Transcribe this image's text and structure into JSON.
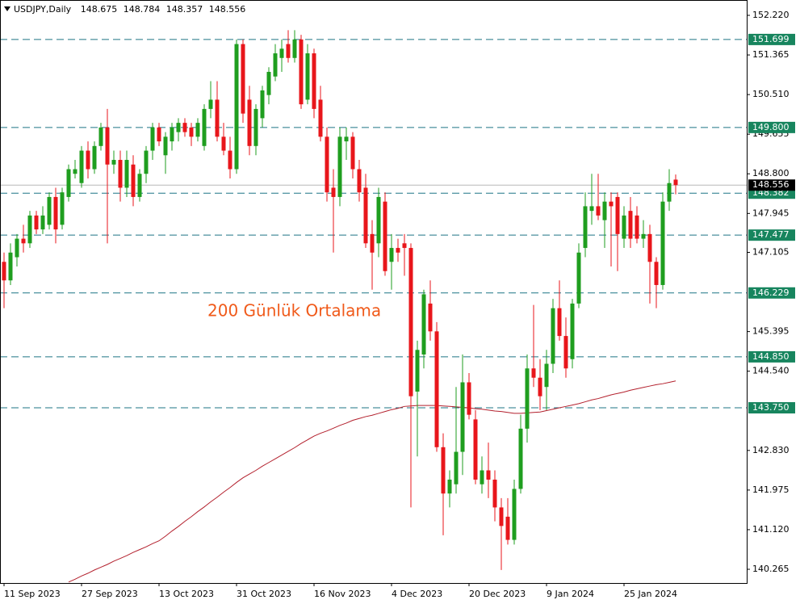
{
  "chart_data": {
    "type": "candlestick",
    "title": "USDJPY,Daily",
    "categories": [
      "11 Sep 2023",
      null,
      null,
      null,
      null,
      null,
      null,
      null,
      null,
      null,
      null,
      null,
      "27 Sep 2023",
      null,
      null,
      null,
      null,
      null,
      null,
      null,
      null,
      null,
      null,
      null,
      "13 Oct 2023",
      null,
      null,
      null,
      null,
      null,
      null,
      null,
      null,
      null,
      null,
      null,
      "31 Oct 2023",
      null,
      null,
      null,
      null,
      null,
      null,
      null,
      null,
      null,
      null,
      null,
      "16 Nov 2023",
      null,
      null,
      null,
      null,
      null,
      null,
      null,
      null,
      null,
      null,
      null,
      "4 Dec 2023",
      null,
      null,
      null,
      null,
      null,
      null,
      null,
      null,
      null,
      null,
      null,
      "20 Dec 2023",
      null,
      null,
      null,
      null,
      null,
      null,
      null,
      null,
      null,
      null,
      null,
      "9 Jan 2024",
      null,
      null,
      null,
      null,
      null,
      null,
      null,
      null,
      null,
      null,
      null,
      "25 Jan 2024",
      null,
      null,
      null,
      null,
      null,
      null,
      null,
      null
    ],
    "open": [
      146.9,
      146.5,
      147.0,
      147.4,
      147.3,
      147.9,
      147.6,
      147.7,
      148.3,
      147.7,
      148.3,
      148.8,
      148.6,
      149.3,
      148.9,
      149.4,
      149.8,
      149.0,
      149.1,
      148.5,
      149.0,
      148.3,
      148.8,
      149.3,
      149.8,
      149.2,
      149.5,
      149.7,
      149.9,
      149.8,
      149.6,
      149.4,
      150.2,
      150.4,
      149.6,
      149.3,
      148.9,
      151.6,
      150.4,
      149.4,
      150.0,
      150.5,
      150.9,
      151.3,
      151.6,
      151.3,
      151.7,
      150.4,
      151.4,
      150.4,
      149.6,
      148.5,
      148.3,
      149.5,
      149.6,
      148.9,
      148.5,
      147.5,
      147.3,
      148.2,
      146.9,
      147.2,
      147.3,
      147.2,
      144.1,
      144.9,
      146.0,
      145.4,
      142.9,
      141.9,
      142.1,
      142.8,
      144.3,
      143.5,
      142.1,
      142.4,
      142.2,
      141.6,
      141.4,
      140.9,
      142.0,
      143.3,
      144.6,
      144.4,
      144.2,
      144.7,
      145.9,
      145.3,
      144.8,
      146.0,
      147.2,
      148.0,
      148.1,
      147.8,
      148.2,
      148.3,
      147.4,
      148.0,
      147.9,
      147.4,
      147.5,
      146.9,
      146.4,
      148.2,
      148.675
    ],
    "high": [
      147.1,
      147.3,
      147.5,
      147.7,
      148.0,
      148.0,
      148.1,
      148.4,
      148.5,
      148.5,
      149.0,
      149.1,
      149.4,
      149.5,
      149.5,
      149.9,
      150.2,
      149.3,
      149.3,
      149.3,
      149.2,
      148.9,
      149.4,
      149.9,
      149.9,
      149.7,
      149.9,
      150.0,
      150.0,
      149.9,
      150.0,
      150.3,
      150.8,
      150.8,
      149.9,
      149.6,
      151.7,
      151.7,
      150.7,
      150.3,
      150.7,
      151.1,
      151.6,
      151.7,
      151.9,
      151.9,
      151.8,
      151.6,
      151.5,
      150.7,
      149.8,
      148.9,
      149.8,
      149.8,
      149.7,
      149.1,
      148.8,
      147.8,
      148.5,
      148.4,
      147.5,
      147.4,
      147.5,
      147.3,
      145.2,
      146.3,
      146.5,
      145.6,
      143.2,
      142.4,
      144.2,
      144.9,
      144.5,
      143.7,
      142.7,
      143.0,
      142.4,
      141.8,
      141.8,
      142.2,
      143.6,
      144.9,
      145.97,
      144.8,
      145.0,
      146.1,
      146.5,
      145.7,
      146.1,
      147.3,
      148.4,
      148.8,
      148.8,
      148.4,
      148.4,
      148.4,
      148.1,
      148.3,
      148.1,
      147.8,
      147.7,
      147.0,
      148.4,
      148.9,
      148.784
    ],
    "low": [
      145.9,
      146.4,
      146.8,
      147.1,
      147.2,
      147.5,
      147.5,
      147.6,
      147.3,
      147.6,
      148.2,
      148.7,
      148.5,
      148.7,
      148.8,
      149.3,
      147.3,
      148.8,
      148.2,
      148.3,
      148.1,
      148.2,
      148.6,
      149.1,
      149.4,
      148.8,
      149.3,
      149.5,
      149.6,
      149.4,
      149.5,
      149.3,
      150.0,
      149.5,
      149.2,
      148.7,
      148.8,
      149.9,
      149.2,
      149.2,
      149.8,
      150.3,
      150.8,
      151.0,
      151.2,
      151.2,
      150.2,
      150.3,
      150.0,
      149.5,
      148.2,
      147.1,
      148.1,
      149.1,
      148.7,
      148.2,
      147.2,
      146.3,
      147.0,
      146.6,
      146.3,
      146.9,
      146.6,
      141.6,
      142.7,
      144.6,
      145.2,
      142.8,
      141.0,
      141.6,
      141.9,
      142.3,
      143.5,
      142.1,
      141.9,
      141.8,
      141.3,
      140.25,
      140.8,
      140.8,
      141.9,
      143.0,
      144.2,
      143.7,
      143.7,
      144.5,
      145.2,
      144.4,
      144.6,
      145.9,
      147.0,
      147.7,
      147.8,
      147.2,
      146.8,
      146.7,
      147.2,
      147.2,
      147.3,
      147.2,
      146.0,
      145.9,
      146.3,
      148.0,
      148.357
    ],
    "close": [
      146.5,
      147.1,
      147.4,
      147.3,
      147.9,
      147.6,
      147.9,
      148.3,
      147.6,
      148.4,
      148.9,
      148.9,
      149.3,
      148.9,
      149.4,
      149.8,
      149.0,
      149.1,
      148.5,
      149.1,
      148.3,
      148.8,
      149.3,
      149.8,
      149.5,
      149.6,
      149.8,
      149.9,
      149.7,
      149.6,
      149.9,
      150.2,
      150.4,
      149.6,
      149.3,
      148.9,
      151.6,
      150.1,
      149.4,
      150.2,
      150.6,
      151.0,
      151.4,
      151.5,
      151.3,
      151.7,
      150.3,
      151.4,
      150.2,
      149.6,
      148.4,
      148.3,
      149.6,
      149.6,
      148.9,
      148.4,
      147.3,
      147.1,
      148.3,
      146.7,
      147.2,
      147.1,
      147.2,
      144.0,
      145.0,
      146.2,
      145.4,
      142.9,
      141.9,
      142.2,
      142.8,
      144.3,
      143.6,
      142.2,
      142.4,
      142.2,
      141.6,
      141.2,
      140.9,
      142.0,
      143.3,
      144.6,
      144.4,
      144.0,
      144.7,
      145.9,
      145.3,
      144.6,
      146.0,
      147.1,
      148.1,
      148.1,
      147.9,
      148.2,
      148.1,
      147.5,
      147.9,
      147.4,
      147.4,
      147.5,
      146.9,
      146.4,
      148.2,
      148.6,
      148.556
    ],
    "up_color": "#1f9e1f",
    "down_color": "#e8161b",
    "ma": {
      "name": "200 Günlük Ortalama",
      "color": "#b3202d",
      "label_color": "#f05a1a",
      "values": [
        null,
        null,
        null,
        null,
        null,
        null,
        null,
        null,
        null,
        null,
        139.99,
        140.05,
        140.12,
        140.18,
        140.25,
        140.31,
        140.37,
        140.44,
        140.5,
        140.56,
        140.63,
        140.69,
        140.75,
        140.82,
        140.88,
        140.98,
        141.09,
        141.19,
        141.3,
        141.4,
        141.51,
        141.61,
        141.72,
        141.82,
        141.93,
        142.03,
        142.14,
        142.24,
        142.32,
        142.4,
        142.49,
        142.57,
        142.65,
        142.73,
        142.81,
        142.89,
        142.98,
        143.06,
        143.14,
        143.2,
        143.25,
        143.31,
        143.37,
        143.42,
        143.48,
        143.52,
        143.56,
        143.59,
        143.63,
        143.67,
        143.71,
        143.74,
        143.78,
        143.79,
        143.8,
        143.8,
        143.8,
        143.8,
        143.79,
        143.78,
        143.77,
        143.76,
        143.75,
        143.73,
        143.72,
        143.7,
        143.68,
        143.67,
        143.65,
        143.63,
        143.63,
        143.64,
        143.65,
        143.66,
        143.69,
        143.72,
        143.75,
        143.78,
        143.81,
        143.84,
        143.88,
        143.92,
        143.95,
        143.99,
        144.03,
        144.06,
        144.09,
        144.13,
        144.16,
        144.19,
        144.22,
        144.25,
        144.27,
        144.3,
        144.33
      ]
    },
    "levels": [
      151.699,
      {
        "value": 149.8,
        "label": "149.800"
      },
      148.382,
      147.477,
      146.229,
      {
        "value": 144.85,
        "label": "144.850"
      },
      {
        "value": 143.75,
        "label": "143.750"
      }
    ],
    "level_color": "#1d7585",
    "level_box_color": "#17855e",
    "ylim": [
      139.969,
      152.551
    ],
    "yticks": [
      {
        "value": 152.22,
        "label": "152.220"
      },
      151.365,
      {
        "value": 150.51,
        "label": "150.510"
      },
      149.655,
      {
        "value": 148.8,
        "label": "148.800"
      },
      147.945,
      147.105,
      145.395,
      {
        "value": 144.54,
        "label": "144.540"
      },
      {
        "value": 142.83,
        "label": "142.830"
      },
      141.975,
      {
        "value": 141.12,
        "label": "141.120"
      },
      140.265
    ]
  }
}
